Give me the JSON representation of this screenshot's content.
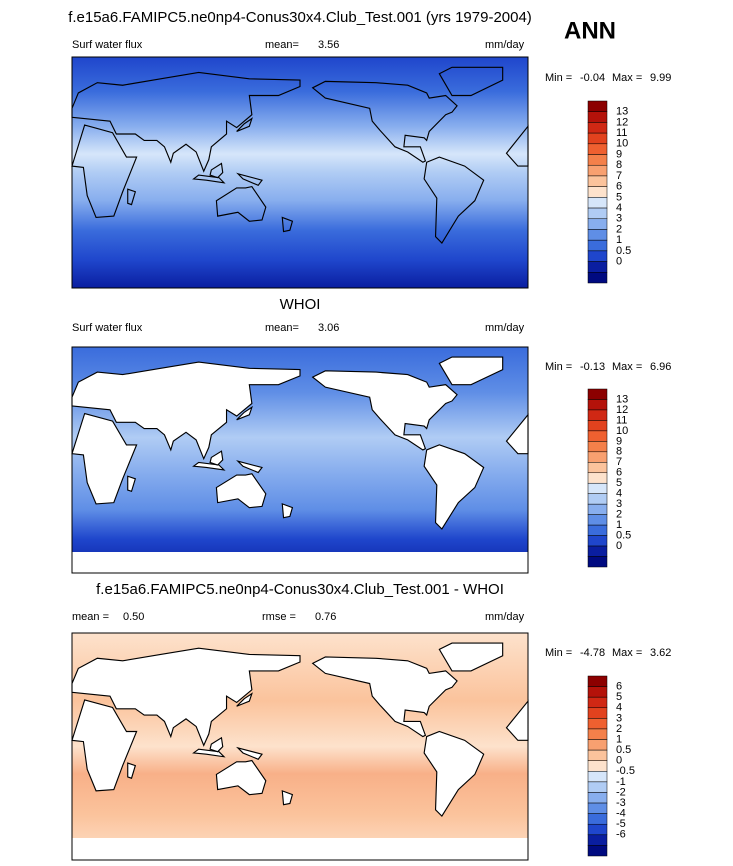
{
  "header": {
    "title": "f.e15a6.FAMIPC5.ne0np4-Conus30x4.Club_Test.001 (yrs 1979-2004)",
    "season": "ANN"
  },
  "panels": [
    {
      "variable": "Surf water flux",
      "stat_label": "mean=",
      "stat_value": "3.56",
      "units": "mm/day",
      "min_label": "Min =",
      "min": "-0.04",
      "max_label": "Max =",
      "max": "9.99",
      "colorbar": {
        "labels": [
          13,
          12,
          11,
          10,
          9,
          8,
          7,
          6,
          5,
          4,
          3,
          2,
          1,
          0.5,
          0
        ],
        "colors": [
          "#8c0000",
          "#b4120a",
          "#d02814",
          "#e2421e",
          "#ef6030",
          "#f4804a",
          "#f8a070",
          "#fbc39c",
          "#fde2cc",
          "#d6e6fa",
          "#b0ccf4",
          "#88aeee",
          "#5f8ee6",
          "#3a6cdc",
          "#1f46cc",
          "#0a1ea0",
          "#000a80"
        ]
      }
    },
    {
      "title": "WHOI",
      "variable": "Surf water flux",
      "stat_label": "mean=",
      "stat_value": "3.06",
      "units": "mm/day",
      "min_label": "Min =",
      "min": "-0.13",
      "max_label": "Max =",
      "max": "6.96",
      "colorbar": {
        "labels": [
          13,
          12,
          11,
          10,
          9,
          8,
          7,
          6,
          5,
          4,
          3,
          2,
          1,
          0.5,
          0
        ],
        "colors": [
          "#8c0000",
          "#b4120a",
          "#d02814",
          "#e2421e",
          "#ef6030",
          "#f4804a",
          "#f8a070",
          "#fbc39c",
          "#fde2cc",
          "#d6e6fa",
          "#b0ccf4",
          "#88aeee",
          "#5f8ee6",
          "#3a6cdc",
          "#1f46cc",
          "#0a1ea0",
          "#000a80"
        ]
      }
    },
    {
      "title": "f.e15a6.FAMIPC5.ne0np4-Conus30x4.Club_Test.001 - WHOI",
      "stat_label": "mean =",
      "stat_value": "0.50",
      "stat2_label": "rmse =",
      "stat2_value": "0.76",
      "units": "mm/day",
      "min_label": "Min =",
      "min": "-4.78",
      "max_label": "Max =",
      "max": "3.62",
      "colorbar": {
        "labels": [
          6,
          5,
          4,
          3,
          2,
          1,
          0.5,
          0,
          -0.5,
          -1,
          -2,
          -3,
          -4,
          -5,
          -6
        ],
        "colors": [
          "#8c0000",
          "#b4120a",
          "#d02814",
          "#e2421e",
          "#ef6030",
          "#f4804a",
          "#f8a070",
          "#fbc39c",
          "#fde2cc",
          "#d6e6fa",
          "#b0ccf4",
          "#88aeee",
          "#5f8ee6",
          "#3a6cdc",
          "#1f46cc",
          "#0a1ea0",
          "#000a80"
        ]
      }
    }
  ]
}
